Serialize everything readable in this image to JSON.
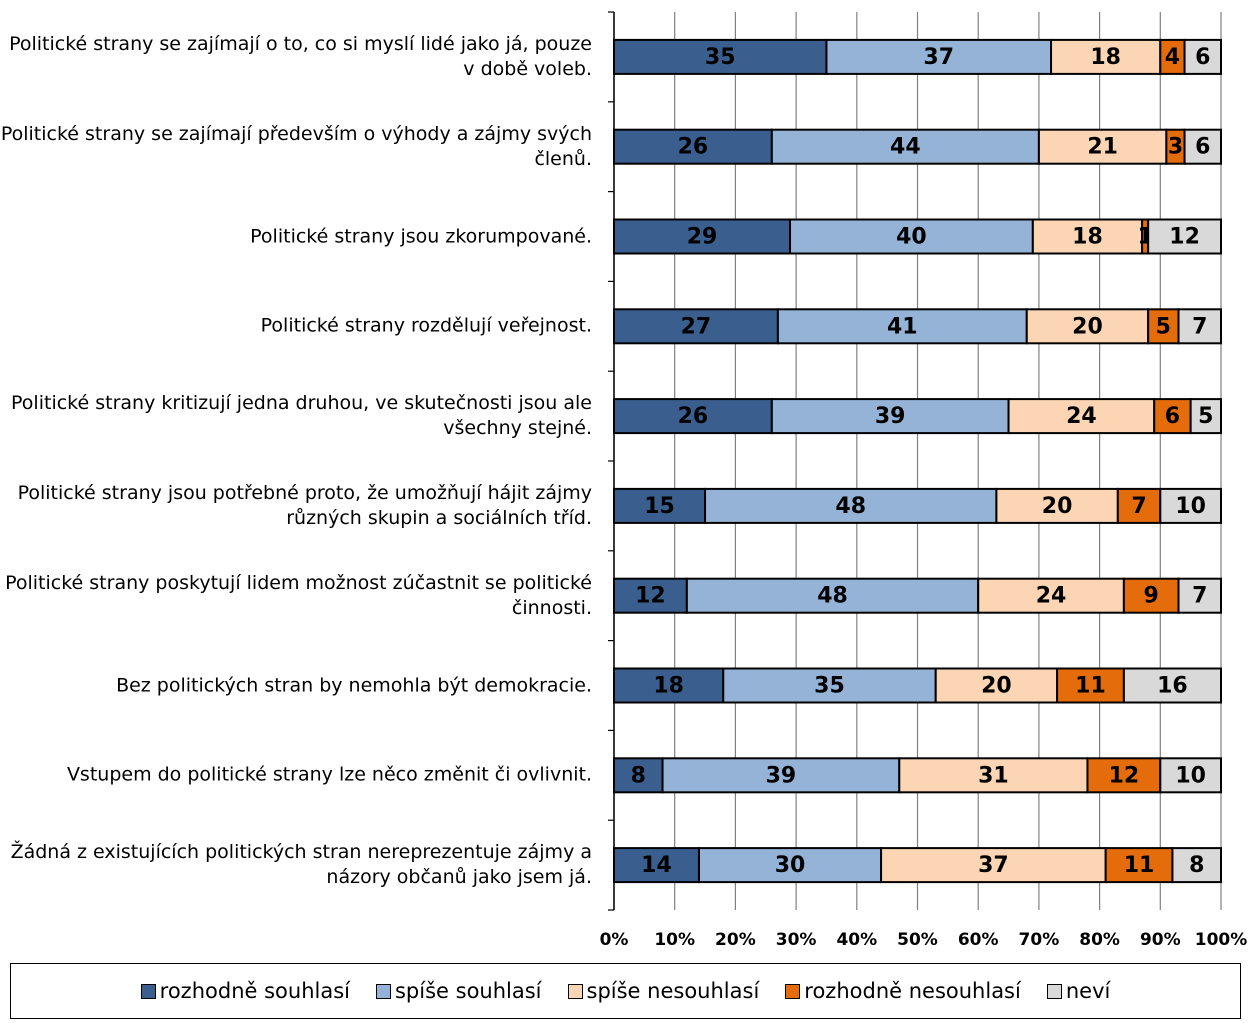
{
  "chart_data": {
    "type": "stacked-bar-horizontal",
    "categories": [
      "Politické strany se zajímají o to, co si myslí lidé jako já, pouze v době voleb.",
      "Politické strany se zajímají především o výhody a zájmy svých členů.",
      "Politické strany jsou zkorumpované.",
      "Politické strany rozdělují veřejnost.",
      "Politické strany kritizují jedna druhou, ve skutečnosti jsou ale všechny stejné.",
      "Politické strany jsou potřebné proto, že umožňují hájit zájmy různých skupin a sociálních tříd.",
      "Politické strany poskytují lidem možnost zúčastnit se politické činnosti.",
      "Bez politických stran by nemohla být demokracie.",
      "Vstupem do politické strany lze něco změnit či ovlivnit.",
      "Žádná z existujících politických stran nereprezentuje zájmy a názory občanů jako jsem já."
    ],
    "series": [
      {
        "name": "rozhodně souhlasí",
        "color": "#3a5f8f",
        "values": [
          35,
          26,
          29,
          27,
          26,
          15,
          12,
          18,
          8,
          14
        ]
      },
      {
        "name": "spíše souhlasí",
        "color": "#95b3d7",
        "values": [
          37,
          44,
          40,
          41,
          39,
          48,
          48,
          35,
          39,
          30
        ]
      },
      {
        "name": "spíše nesouhlasí",
        "color": "#fcd5b4",
        "values": [
          18,
          21,
          18,
          20,
          24,
          20,
          24,
          20,
          31,
          37
        ]
      },
      {
        "name": "rozhodně nesouhlasí",
        "color": "#e46c0a",
        "values": [
          4,
          3,
          1,
          5,
          6,
          7,
          9,
          11,
          12,
          11
        ]
      },
      {
        "name": "neví",
        "color": "#d9d9d9",
        "values": [
          6,
          6,
          12,
          7,
          5,
          10,
          7,
          16,
          10,
          8
        ]
      }
    ],
    "xlim": [
      0,
      100
    ],
    "xticks": [
      {
        "value": 0,
        "label": "0%"
      },
      {
        "value": 10,
        "label": "10%"
      },
      {
        "value": 20,
        "label": "20%"
      },
      {
        "value": 30,
        "label": "30%"
      },
      {
        "value": 40,
        "label": "40%"
      },
      {
        "value": 50,
        "label": "50%"
      },
      {
        "value": 60,
        "label": "60%"
      },
      {
        "value": 70,
        "label": "70%"
      },
      {
        "value": 80,
        "label": "80%"
      },
      {
        "value": 90,
        "label": "90%"
      },
      {
        "value": 100,
        "label": "100%"
      }
    ],
    "grid": true,
    "legend": "bottom"
  }
}
